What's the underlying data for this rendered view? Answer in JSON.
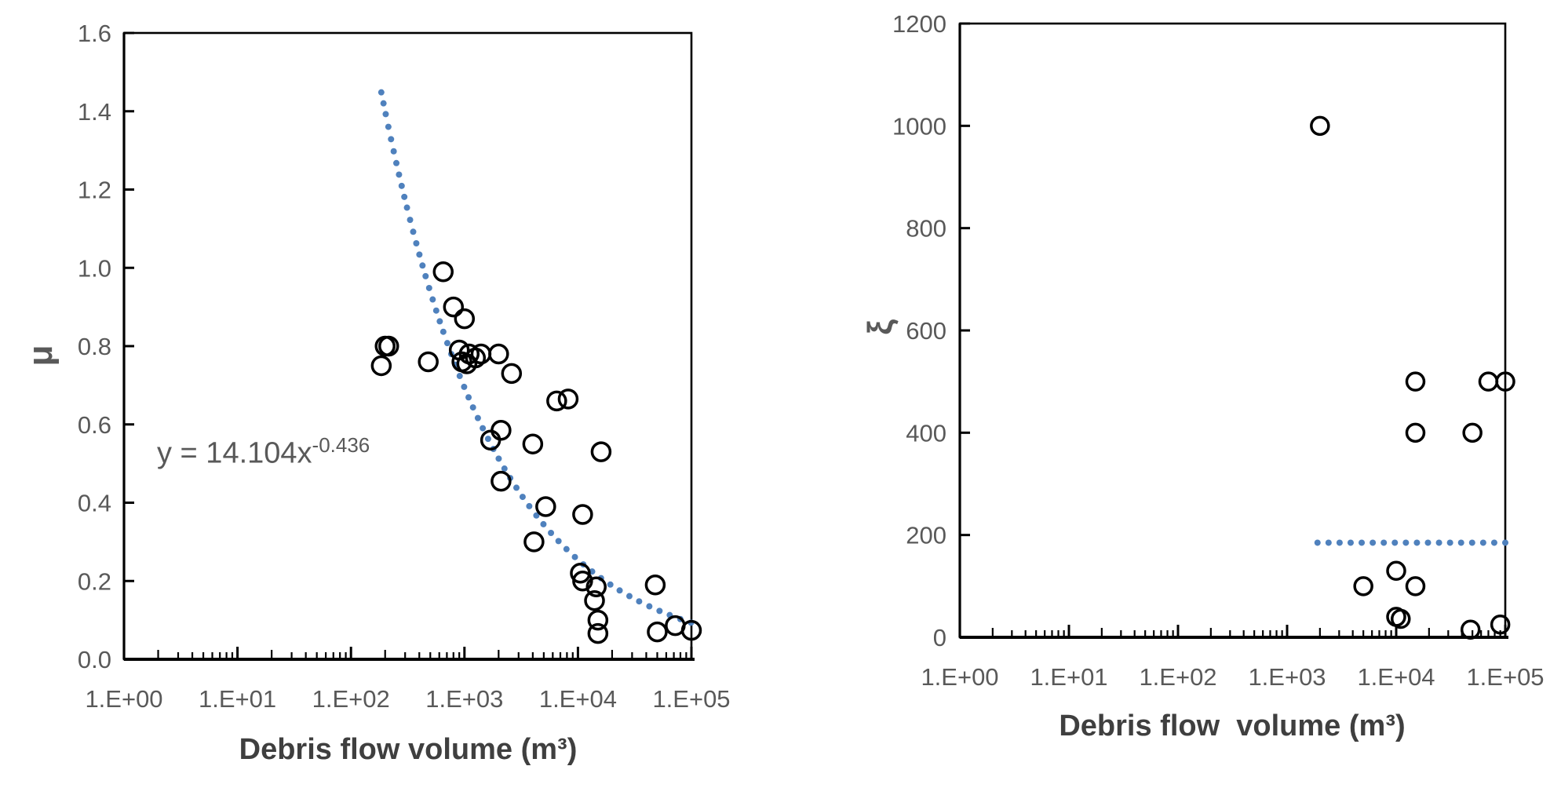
{
  "colors": {
    "background": "#ffffff",
    "marker_stroke": "#000000",
    "trendline": "#4f81bd",
    "axis_line": "#000000",
    "tick_label": "#595959",
    "axis_title": "#3f3f3f"
  },
  "chart_data": [
    {
      "id": "mu-vs-volume",
      "type": "scatter",
      "title": "",
      "xlabel": "Debris flow volume (m³)",
      "ylabel": "μ",
      "x_scale": "log",
      "xlim_log": [
        0,
        5
      ],
      "ylim": [
        0,
        1.6
      ],
      "grid": false,
      "legend": "none",
      "x_ticks": [
        {
          "label": "1.E+00",
          "log": 0
        },
        {
          "label": "1.E+01",
          "log": 1
        },
        {
          "label": "1.E+02",
          "log": 2
        },
        {
          "label": "1.E+03",
          "log": 3
        },
        {
          "label": "1.E+04",
          "log": 4
        },
        {
          "label": "1.E+05",
          "log": 5
        }
      ],
      "y_ticks": [
        {
          "label": "0.0",
          "value": 0.0
        },
        {
          "label": "0.2",
          "value": 0.2
        },
        {
          "label": "0.4",
          "value": 0.4
        },
        {
          "label": "0.6",
          "value": 0.6
        },
        {
          "label": "0.8",
          "value": 0.8
        },
        {
          "label": "1.0",
          "value": 1.0
        },
        {
          "label": "1.2",
          "value": 1.2
        },
        {
          "label": "1.4",
          "value": 1.4
        },
        {
          "label": "1.6",
          "value": 1.6
        }
      ],
      "points": [
        [
          185,
          0.75
        ],
        [
          200,
          0.8
        ],
        [
          215,
          0.8
        ],
        [
          480,
          0.76
        ],
        [
          650,
          0.99
        ],
        [
          800,
          0.9
        ],
        [
          1000,
          0.87
        ],
        [
          900,
          0.79
        ],
        [
          950,
          0.76
        ],
        [
          1050,
          0.755
        ],
        [
          1100,
          0.78
        ],
        [
          1250,
          0.77
        ],
        [
          1400,
          0.78
        ],
        [
          2000,
          0.78
        ],
        [
          2600,
          0.73
        ],
        [
          6500,
          0.66
        ],
        [
          8200,
          0.665
        ],
        [
          1700,
          0.56
        ],
        [
          2100,
          0.585
        ],
        [
          4000,
          0.55
        ],
        [
          16000,
          0.53
        ],
        [
          2100,
          0.455
        ],
        [
          5200,
          0.39
        ],
        [
          11000,
          0.37
        ],
        [
          4100,
          0.3
        ],
        [
          10500,
          0.22
        ],
        [
          11000,
          0.2
        ],
        [
          14500,
          0.185
        ],
        [
          14000,
          0.15
        ],
        [
          15000,
          0.1
        ],
        [
          15000,
          0.066
        ],
        [
          48000,
          0.19
        ],
        [
          50000,
          0.07
        ],
        [
          72000,
          0.086
        ],
        [
          100000,
          0.074
        ]
      ],
      "trendline": {
        "type": "power",
        "a": 14.104,
        "b": -0.436,
        "x_start": 185,
        "x_end": 100000,
        "equation_prefix": "y = 14.104x",
        "equation_exponent": "-0.436"
      }
    },
    {
      "id": "xi-vs-volume",
      "type": "scatter",
      "title": "",
      "xlabel": "Debris flow  volume (m³)",
      "ylabel": "ξ",
      "x_scale": "log",
      "xlim_log": [
        0,
        5
      ],
      "ylim": [
        0,
        1200
      ],
      "grid": false,
      "legend": "none",
      "x_ticks": [
        {
          "label": "1.E+00",
          "log": 0
        },
        {
          "label": "1.E+01",
          "log": 1
        },
        {
          "label": "1.E+02",
          "log": 2
        },
        {
          "label": "1.E+03",
          "log": 3
        },
        {
          "label": "1.E+04",
          "log": 4
        },
        {
          "label": "1.E+05",
          "log": 5
        }
      ],
      "y_ticks": [
        {
          "label": "0",
          "value": 0
        },
        {
          "label": "200",
          "value": 200
        },
        {
          "label": "400",
          "value": 400
        },
        {
          "label": "600",
          "value": 600
        },
        {
          "label": "800",
          "value": 800
        },
        {
          "label": "1000",
          "value": 1000
        },
        {
          "label": "1200",
          "value": 1200
        }
      ],
      "points": [
        [
          2000,
          1000
        ],
        [
          15000,
          500
        ],
        [
          70000,
          500
        ],
        [
          100000,
          500
        ],
        [
          15000,
          400
        ],
        [
          50000,
          400
        ],
        [
          10000,
          130
        ],
        [
          5000,
          100
        ],
        [
          15000,
          100
        ],
        [
          10000,
          40
        ],
        [
          11000,
          36
        ],
        [
          48000,
          15
        ],
        [
          90000,
          25
        ]
      ],
      "trendline": {
        "type": "constant",
        "y": 185,
        "x_start": 1900,
        "x_end": 100000
      }
    }
  ]
}
